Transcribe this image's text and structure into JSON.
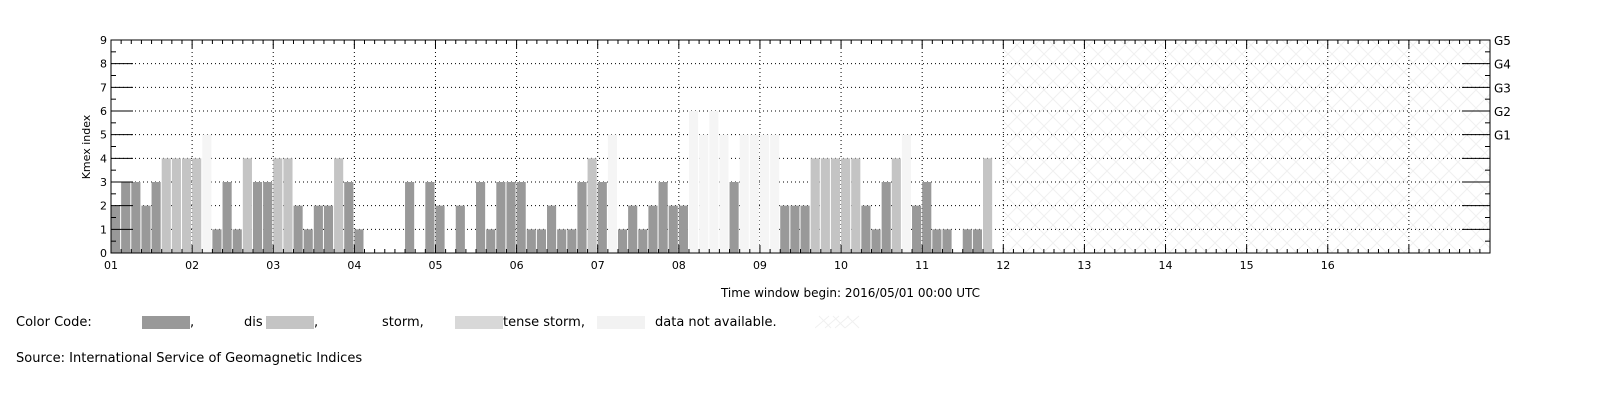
{
  "chart_data": {
    "type": "bar",
    "title": "",
    "xlabel": "Time window begin: 2016/05/01 00:00 UTC",
    "ylabel": "Kmex index",
    "ylim": [
      0,
      9
    ],
    "xlim": [
      0,
      16
    ],
    "y_ticks": [
      "0",
      "1",
      "2",
      "3",
      "4",
      "5",
      "6",
      "7",
      "8",
      "9"
    ],
    "x_ticks": [
      "01",
      "02",
      "03",
      "04",
      "05",
      "06",
      "07",
      "08",
      "09",
      "10",
      "11",
      "12",
      "13",
      "14",
      "15",
      "16"
    ],
    "g_labels": [
      {
        "label": "G1",
        "level": 5
      },
      {
        "label": "G2",
        "level": 6
      },
      {
        "label": "G3",
        "level": 7
      },
      {
        "label": "G4",
        "level": 8
      },
      {
        "label": "G5",
        "level": 9
      }
    ],
    "grid": true,
    "bins_per_day": 8,
    "series": [
      {
        "values": [
          2,
          3,
          3,
          2,
          3,
          4,
          4,
          4,
          4,
          5,
          1,
          3,
          1,
          4,
          3,
          3,
          4,
          4,
          2,
          1,
          2,
          2,
          4,
          3,
          1,
          0,
          0,
          0,
          0,
          3,
          0,
          3,
          2,
          0,
          2,
          0,
          3,
          1,
          3,
          3,
          3,
          1,
          1,
          2,
          1,
          1,
          3,
          4,
          3,
          5,
          1,
          2,
          1,
          2,
          3,
          2,
          2,
          6,
          5,
          6,
          5,
          3,
          5,
          5,
          5,
          5,
          2,
          2,
          2,
          4,
          4,
          4,
          4,
          4,
          2,
          1,
          3,
          4,
          5,
          2,
          3,
          1,
          1,
          0,
          1,
          1,
          4,
          0
        ],
        "kinds": [
          "q",
          "q",
          "q",
          "q",
          "q",
          "d",
          "d",
          "d",
          "d",
          "n",
          "q",
          "q",
          "q",
          "d",
          "q",
          "q",
          "d",
          "d",
          "q",
          "q",
          "q",
          "q",
          "d",
          "q",
          "q",
          "q",
          "q",
          "q",
          "q",
          "q",
          "q",
          "q",
          "q",
          "q",
          "q",
          "q",
          "q",
          "q",
          "q",
          "q",
          "q",
          "q",
          "q",
          "q",
          "q",
          "q",
          "q",
          "d",
          "q",
          "n",
          "q",
          "q",
          "q",
          "q",
          "q",
          "q",
          "q",
          "n",
          "n",
          "n",
          "n",
          "q",
          "n",
          "n",
          "n",
          "n",
          "q",
          "q",
          "q",
          "d",
          "d",
          "d",
          "d",
          "d",
          "q",
          "q",
          "q",
          "d",
          "n",
          "q",
          "q",
          "q",
          "q",
          "q",
          "q",
          "q",
          "d",
          "q"
        ]
      }
    ],
    "no_data_from_day": 11,
    "colors": {
      "quiet": "#999999",
      "disturbed": "#c4c4c4",
      "storm": "#d8d8d8",
      "intense_storm": "#e9e9e9",
      "not_available": "#f5f5f5"
    }
  },
  "legend": {
    "title": "Color Code:",
    "items": [
      {
        "label": ",",
        "key": "quiet"
      },
      {
        "label": "dis",
        "key": "disturbed"
      },
      {
        "label": ",",
        "key": "disturbed_end"
      },
      {
        "label": "storm,",
        "key": "storm"
      },
      {
        "label": "tense storm,",
        "key": "intense_storm"
      },
      {
        "label": "data not available.",
        "key": "not_available"
      }
    ]
  },
  "source": "Source: International Service of Geomagnetic Indices"
}
